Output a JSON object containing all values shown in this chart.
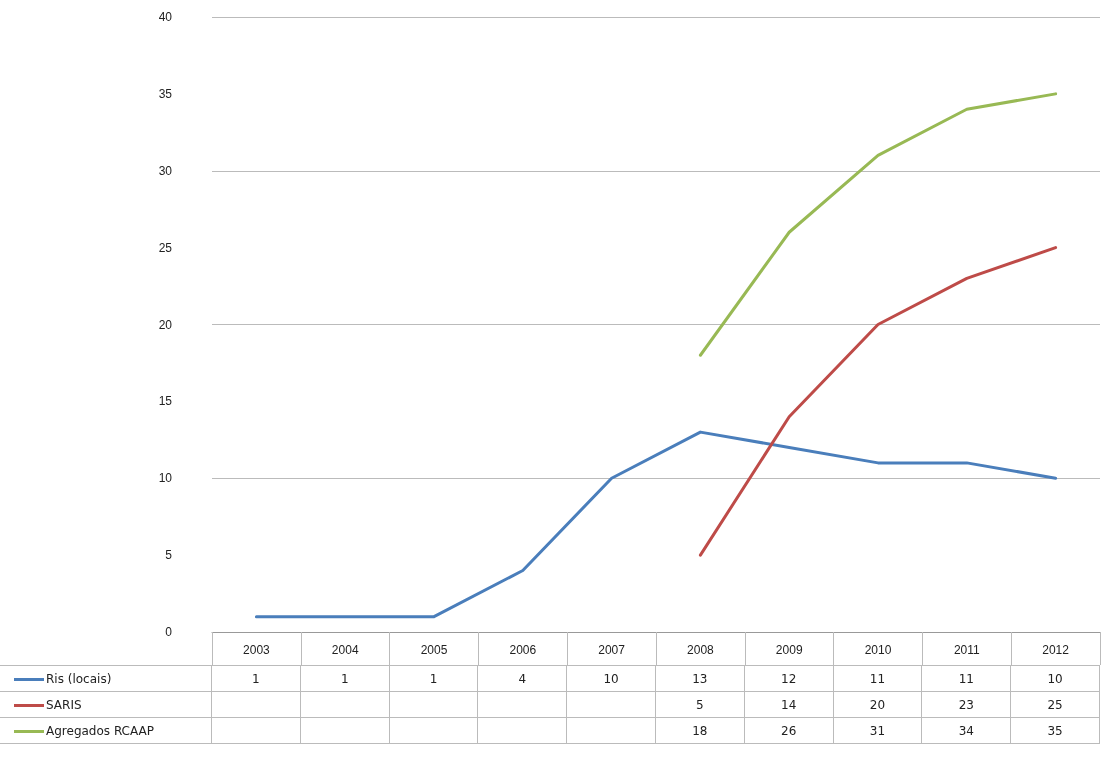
{
  "chart_data": {
    "type": "line",
    "categories": [
      "2003",
      "2004",
      "2005",
      "2006",
      "2007",
      "2008",
      "2009",
      "2010",
      "2011",
      "2012"
    ],
    "series": [
      {
        "name": "Ris (locais)",
        "color": "#4a7ebb",
        "values": [
          1,
          1,
          1,
          4,
          10,
          13,
          12,
          11,
          11,
          10
        ]
      },
      {
        "name": "SARIS",
        "color": "#be4b48",
        "values": [
          null,
          null,
          null,
          null,
          null,
          5,
          14,
          20,
          23,
          25
        ]
      },
      {
        "name": "Agregados RCAAP",
        "color": "#98b954",
        "values": [
          null,
          null,
          null,
          null,
          null,
          18,
          26,
          31,
          34,
          35
        ]
      }
    ],
    "ylim": [
      0,
      40
    ],
    "yticks": [
      0,
      5,
      10,
      15,
      20,
      25,
      30,
      35,
      40
    ],
    "grid": "y",
    "legend": "bottom",
    "data_labels": true,
    "marker": "none",
    "line_style": "solid"
  }
}
